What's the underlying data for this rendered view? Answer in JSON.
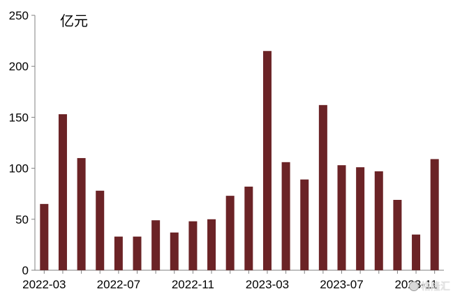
{
  "chart_data": {
    "type": "bar",
    "title": "",
    "unit_label": "亿元",
    "xlabel": "",
    "ylabel": "",
    "ylim": [
      0,
      250
    ],
    "yticks": [
      0,
      50,
      100,
      150,
      200,
      250
    ],
    "categories": [
      "2022-03",
      "2022-04",
      "2022-05",
      "2022-06",
      "2022-07",
      "2022-08",
      "2022-09",
      "2022-10",
      "2022-11",
      "2022-12",
      "2023-01",
      "2023-02",
      "2023-03",
      "2023-04",
      "2023-05",
      "2023-06",
      "2023-07",
      "2023-08",
      "2023-09",
      "2023-10",
      "2023-11",
      "2023-12"
    ],
    "xtick_labels": [
      "2022-03",
      "2022-07",
      "2022-11",
      "2023-03",
      "2023-07",
      "2023-11"
    ],
    "values": [
      65,
      153,
      110,
      78,
      33,
      33,
      49,
      37,
      48,
      50,
      73,
      82,
      215,
      106,
      89,
      162,
      103,
      101,
      97,
      69,
      35,
      109
    ],
    "bar_color": "#6b2326",
    "grid": false,
    "legend": "none"
  },
  "watermark": "格隆汇"
}
